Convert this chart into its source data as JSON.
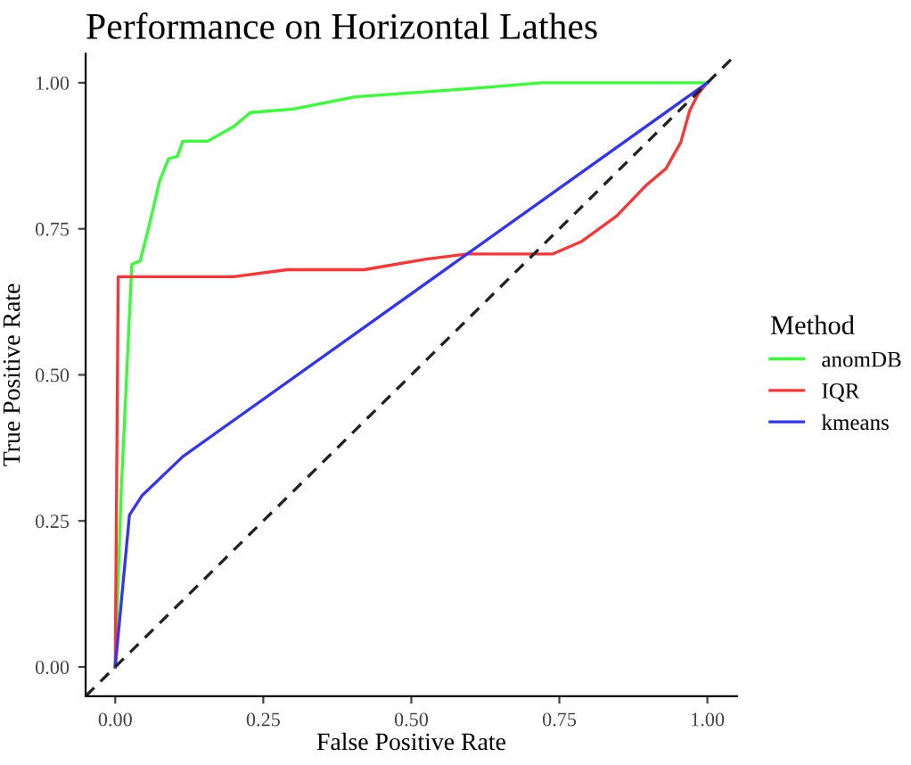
{
  "chart_data": {
    "type": "line",
    "title": "Performance on Horizontal Lathes",
    "xlabel": "False Positive Rate",
    "ylabel": "True Positive Rate",
    "legend_title": "Method",
    "legend": "right",
    "grid": false,
    "xlim": [
      -0.05,
      1.05
    ],
    "ylim": [
      -0.05,
      1.05
    ],
    "xticks": [
      {
        "value": 0,
        "label": "0.00"
      },
      {
        "value": 0.25,
        "label": "0.25"
      },
      {
        "value": 0.5,
        "label": "0.50"
      },
      {
        "value": 0.75,
        "label": "0.75"
      },
      {
        "value": 1,
        "label": "1.00"
      }
    ],
    "yticks": [
      {
        "value": 0,
        "label": "0.00"
      },
      {
        "value": 0.25,
        "label": "0.25"
      },
      {
        "value": 0.5,
        "label": "0.50"
      },
      {
        "value": 0.75,
        "label": "0.75"
      },
      {
        "value": 1,
        "label": "1.00"
      }
    ],
    "series": [
      {
        "name": "anomDB",
        "color": "#33ff33",
        "x": [
          0,
          0.01,
          0.028,
          0.042,
          0.054,
          0.075,
          0.09,
          0.105,
          0.114,
          0.156,
          0.2,
          0.228,
          0.3,
          0.405,
          0.6,
          0.72,
          1.0
        ],
        "values": [
          0,
          0.3,
          0.689,
          0.695,
          0.742,
          0.832,
          0.87,
          0.874,
          0.9,
          0.9,
          0.925,
          0.949,
          0.955,
          0.976,
          0.99,
          1.0,
          1.0
        ]
      },
      {
        "name": "IQR",
        "color": "#ff3333",
        "x": [
          0,
          0.005,
          0.2,
          0.29,
          0.42,
          0.525,
          0.595,
          0.739,
          0.787,
          0.847,
          0.895,
          0.93,
          0.955,
          0.97,
          0.985,
          1.0
        ],
        "values": [
          0,
          0.668,
          0.668,
          0.68,
          0.68,
          0.698,
          0.707,
          0.707,
          0.728,
          0.772,
          0.823,
          0.853,
          0.898,
          0.952,
          0.982,
          1.0
        ]
      },
      {
        "name": "kmeans",
        "color": "#3333ff",
        "x": [
          0,
          0.024,
          0.045,
          0.114,
          1.0
        ],
        "values": [
          0,
          0.26,
          0.293,
          0.36,
          1.0
        ]
      },
      {
        "color": "#222222",
        "line_style": "dashed",
        "x": [
          -0.05,
          1.05
        ],
        "values": [
          -0.05,
          1.05
        ]
      }
    ]
  }
}
